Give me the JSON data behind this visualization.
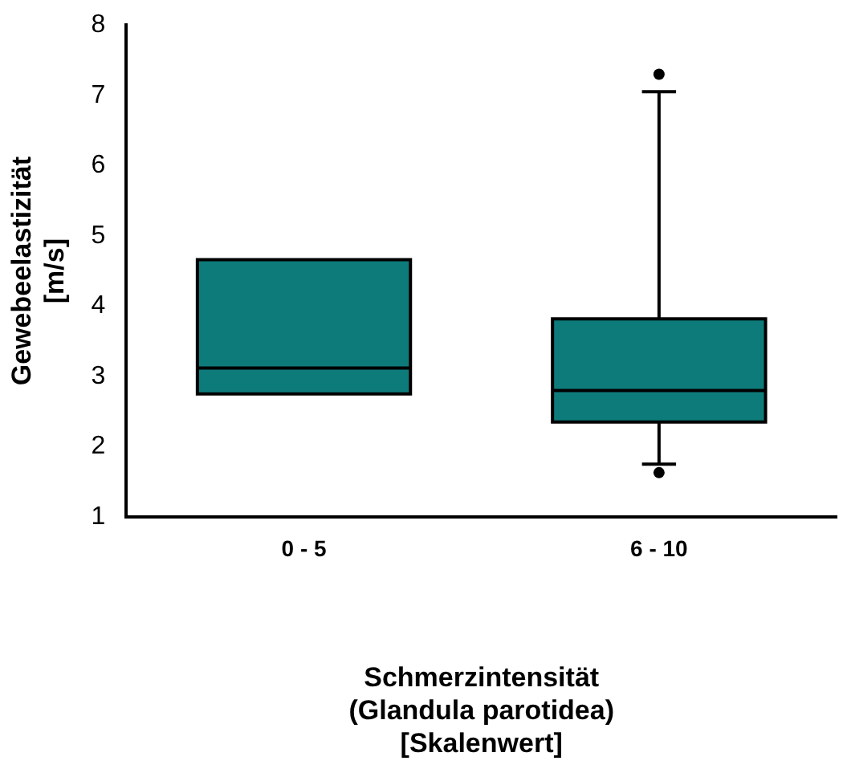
{
  "chart_data": {
    "type": "box",
    "xlabel": "Schmerzintensität\n(Glandula parotidea)\n[Skalenwert]",
    "ylabel": "Gewebeelastizität\n[m/s]",
    "categories": [
      "0 - 5",
      "6 - 10"
    ],
    "color": "#0e7b7b",
    "boxes": [
      {
        "low": 2.75,
        "q1": 2.75,
        "median": 3.12,
        "q3": 4.66,
        "high": 4.66
      },
      {
        "low": 1.75,
        "q1": 2.35,
        "median": 2.8,
        "q3": 3.82,
        "high": 7.05,
        "outliers": [
          7.3,
          1.63
        ]
      }
    ],
    "ylim": [
      1,
      8
    ],
    "yticks": [
      1,
      2,
      3,
      4,
      5,
      6,
      7,
      8
    ],
    "grid": false,
    "legend": false
  }
}
